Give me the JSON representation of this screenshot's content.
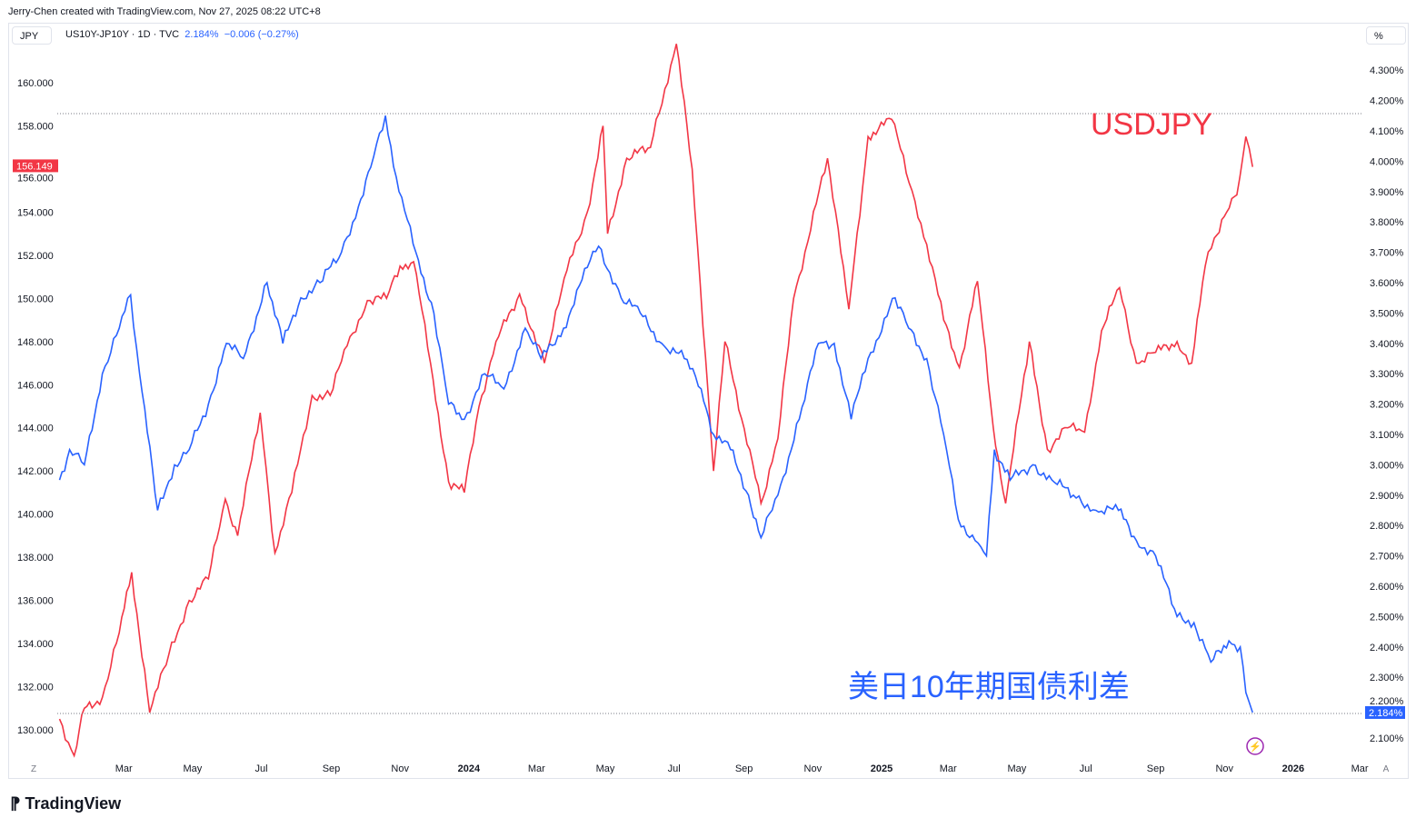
{
  "credit": "Jerry-Chen created with TradingView.com, Nov 27, 2025 08:22 UTC+8",
  "legend": {
    "symbol": "US10Y-JP10Y · 1D · TVC",
    "value": "2.184%",
    "change": "−0.006 (−0.27%)"
  },
  "currency_button": "JPY",
  "percent_button": "%",
  "logo": "TradingView",
  "corner_left": "Z",
  "corner_right": "A",
  "chart_data": {
    "type": "line",
    "title": "US10Y-JP10Y vs USDJPY",
    "annotations": {
      "red": "USDJPY",
      "blue": "美日10年期国债利差"
    },
    "left_axis": {
      "label": "JPY",
      "range": [
        128.7,
        163.2
      ],
      "ticks": [
        "130.000",
        "132.000",
        "134.000",
        "136.000",
        "138.000",
        "140.000",
        "142.000",
        "144.000",
        "146.000",
        "148.000",
        "150.000",
        "152.000",
        "154.000",
        "156.000",
        "158.000",
        "160.000"
      ],
      "last_label": "156.149"
    },
    "right_axis": {
      "label": "%",
      "range": [
        2.045,
        4.455
      ],
      "ticks": [
        "2.100%",
        "2.200%",
        "2.300%",
        "2.400%",
        "2.500%",
        "2.600%",
        "2.700%",
        "2.800%",
        "2.900%",
        "3.000%",
        "3.100%",
        "3.200%",
        "3.300%",
        "3.400%",
        "3.500%",
        "3.600%",
        "3.700%",
        "3.800%",
        "3.900%",
        "4.000%",
        "4.100%",
        "4.200%",
        "4.300%"
      ],
      "last_label": "2.184%"
    },
    "x_ticks": [
      [
        "2023-03-01",
        "Mar"
      ],
      [
        "2023-05-01",
        "May"
      ],
      [
        "2023-07-01",
        "Jul"
      ],
      [
        "2023-09-01",
        "Sep"
      ],
      [
        "2023-11-01",
        "Nov"
      ],
      [
        "2024-01-01",
        "2024"
      ],
      [
        "2024-03-01",
        "Mar"
      ],
      [
        "2024-05-01",
        "May"
      ],
      [
        "2024-07-01",
        "Jul"
      ],
      [
        "2024-09-01",
        "Sep"
      ],
      [
        "2024-11-01",
        "Nov"
      ],
      [
        "2025-01-01",
        "2025"
      ],
      [
        "2025-03-01",
        "Mar"
      ],
      [
        "2025-05-01",
        "May"
      ],
      [
        "2025-07-01",
        "Jul"
      ],
      [
        "2025-09-01",
        "Sep"
      ],
      [
        "2025-11-01",
        "Nov"
      ],
      [
        "2026-01-01",
        "2026"
      ],
      [
        "2026-03-01",
        "Mar"
      ]
    ],
    "series": [
      {
        "name": "USDJPY",
        "axis": "left",
        "color": "#f23645",
        "points": [
          [
            "2023-01-03",
            130.5
          ],
          [
            "2023-01-16",
            128.8
          ],
          [
            "2023-01-25",
            131
          ],
          [
            "2023-02-10",
            131.5
          ],
          [
            "2023-02-25",
            134.5
          ],
          [
            "2023-03-08",
            137.3
          ],
          [
            "2023-03-24",
            130.8
          ],
          [
            "2023-04-10",
            133.5
          ],
          [
            "2023-04-28",
            136
          ],
          [
            "2023-05-15",
            137
          ],
          [
            "2023-05-30",
            140.7
          ],
          [
            "2023-06-10",
            139
          ],
          [
            "2023-06-30",
            144.7
          ],
          [
            "2023-07-13",
            138.2
          ],
          [
            "2023-07-28",
            141
          ],
          [
            "2023-08-15",
            145.5
          ],
          [
            "2023-08-31",
            145.5
          ],
          [
            "2023-09-15",
            147.8
          ],
          [
            "2023-10-03",
            149.9
          ],
          [
            "2023-10-20",
            150
          ],
          [
            "2023-11-01",
            151.5
          ],
          [
            "2023-11-13",
            151.7
          ],
          [
            "2023-11-28",
            147
          ],
          [
            "2023-12-14",
            141.5
          ],
          [
            "2023-12-28",
            141
          ],
          [
            "2024-01-10",
            145
          ],
          [
            "2024-01-25",
            148
          ],
          [
            "2024-02-15",
            150.2
          ],
          [
            "2024-03-08",
            147
          ],
          [
            "2024-03-28",
            151.3
          ],
          [
            "2024-04-15",
            154
          ],
          [
            "2024-04-29",
            158
          ],
          [
            "2024-05-03",
            153
          ],
          [
            "2024-05-20",
            156.5
          ],
          [
            "2024-06-10",
            157
          ],
          [
            "2024-06-28",
            160.8
          ],
          [
            "2024-07-03",
            161.8
          ],
          [
            "2024-07-17",
            156
          ],
          [
            "2024-08-05",
            142
          ],
          [
            "2024-08-15",
            148
          ],
          [
            "2024-09-16",
            140.5
          ],
          [
            "2024-10-01",
            143.5
          ],
          [
            "2024-10-15",
            150
          ],
          [
            "2024-11-14",
            156.5
          ],
          [
            "2024-12-03",
            149.5
          ],
          [
            "2024-12-20",
            157.5
          ],
          [
            "2025-01-10",
            158.3
          ],
          [
            "2025-01-28",
            155
          ],
          [
            "2025-02-10",
            152.5
          ],
          [
            "2025-02-25",
            149
          ],
          [
            "2025-03-11",
            146.8
          ],
          [
            "2025-03-27",
            150.8
          ],
          [
            "2025-04-10",
            144
          ],
          [
            "2025-04-21",
            140.5
          ],
          [
            "2025-05-12",
            148
          ],
          [
            "2025-05-28",
            143
          ],
          [
            "2025-06-15",
            144
          ],
          [
            "2025-06-30",
            143.8
          ],
          [
            "2025-07-15",
            148.5
          ],
          [
            "2025-07-31",
            150.5
          ],
          [
            "2025-08-15",
            147
          ],
          [
            "2025-09-01",
            147.5
          ],
          [
            "2025-09-20",
            148
          ],
          [
            "2025-10-03",
            147
          ],
          [
            "2025-10-15",
            151.5
          ],
          [
            "2025-10-23",
            152.8
          ],
          [
            "2025-11-03",
            154
          ],
          [
            "2025-11-12",
            154.8
          ],
          [
            "2025-11-20",
            157.5
          ],
          [
            "2025-11-26",
            156.1
          ]
        ]
      },
      {
        "name": "US10Y-JP10Y",
        "axis": "right",
        "color": "#2962ff",
        "points": [
          [
            "2023-01-03",
            2.95
          ],
          [
            "2023-01-12",
            3.05
          ],
          [
            "2023-01-25",
            3.0
          ],
          [
            "2023-02-10",
            3.3
          ],
          [
            "2023-02-25",
            3.45
          ],
          [
            "2023-03-07",
            3.56
          ],
          [
            "2023-03-15",
            3.3
          ],
          [
            "2023-03-31",
            2.85
          ],
          [
            "2023-04-15",
            3.0
          ],
          [
            "2023-04-28",
            3.05
          ],
          [
            "2023-05-15",
            3.2
          ],
          [
            "2023-05-31",
            3.4
          ],
          [
            "2023-06-15",
            3.35
          ],
          [
            "2023-07-06",
            3.6
          ],
          [
            "2023-07-20",
            3.4
          ],
          [
            "2023-08-05",
            3.55
          ],
          [
            "2023-08-22",
            3.6
          ],
          [
            "2023-09-10",
            3.7
          ],
          [
            "2023-09-25",
            3.85
          ],
          [
            "2023-10-06",
            3.98
          ],
          [
            "2023-10-19",
            4.15
          ],
          [
            "2023-10-31",
            3.9
          ],
          [
            "2023-11-15",
            3.7
          ],
          [
            "2023-12-01",
            3.5
          ],
          [
            "2023-12-14",
            3.2
          ],
          [
            "2023-12-28",
            3.15
          ],
          [
            "2024-01-15",
            3.3
          ],
          [
            "2024-02-01",
            3.25
          ],
          [
            "2024-02-20",
            3.45
          ],
          [
            "2024-03-05",
            3.35
          ],
          [
            "2024-03-25",
            3.45
          ],
          [
            "2024-04-15",
            3.65
          ],
          [
            "2024-04-25",
            3.72
          ],
          [
            "2024-05-15",
            3.55
          ],
          [
            "2024-06-01",
            3.5
          ],
          [
            "2024-06-20",
            3.4
          ],
          [
            "2024-07-10",
            3.35
          ],
          [
            "2024-07-25",
            3.25
          ],
          [
            "2024-08-05",
            3.1
          ],
          [
            "2024-08-20",
            3.05
          ],
          [
            "2024-09-05",
            2.9
          ],
          [
            "2024-09-16",
            2.76
          ],
          [
            "2024-10-01",
            2.9
          ],
          [
            "2024-10-20",
            3.15
          ],
          [
            "2024-11-06",
            3.4
          ],
          [
            "2024-11-20",
            3.4
          ],
          [
            "2024-12-05",
            3.15
          ],
          [
            "2024-12-20",
            3.35
          ],
          [
            "2025-01-13",
            3.55
          ],
          [
            "2025-01-25",
            3.45
          ],
          [
            "2025-02-10",
            3.35
          ],
          [
            "2025-02-25",
            3.1
          ],
          [
            "2025-03-10",
            2.82
          ],
          [
            "2025-03-25",
            2.75
          ],
          [
            "2025-04-04",
            2.7
          ],
          [
            "2025-04-11",
            3.05
          ],
          [
            "2025-04-25",
            2.95
          ],
          [
            "2025-05-15",
            3.0
          ],
          [
            "2025-06-01",
            2.95
          ],
          [
            "2025-06-20",
            2.9
          ],
          [
            "2025-07-10",
            2.85
          ],
          [
            "2025-07-30",
            2.85
          ],
          [
            "2025-08-15",
            2.75
          ],
          [
            "2025-09-01",
            2.7
          ],
          [
            "2025-09-20",
            2.5
          ],
          [
            "2025-10-05",
            2.48
          ],
          [
            "2025-10-20",
            2.35
          ],
          [
            "2025-11-05",
            2.42
          ],
          [
            "2025-11-15",
            2.4
          ],
          [
            "2025-11-20",
            2.25
          ],
          [
            "2025-11-26",
            2.184
          ]
        ]
      }
    ]
  }
}
